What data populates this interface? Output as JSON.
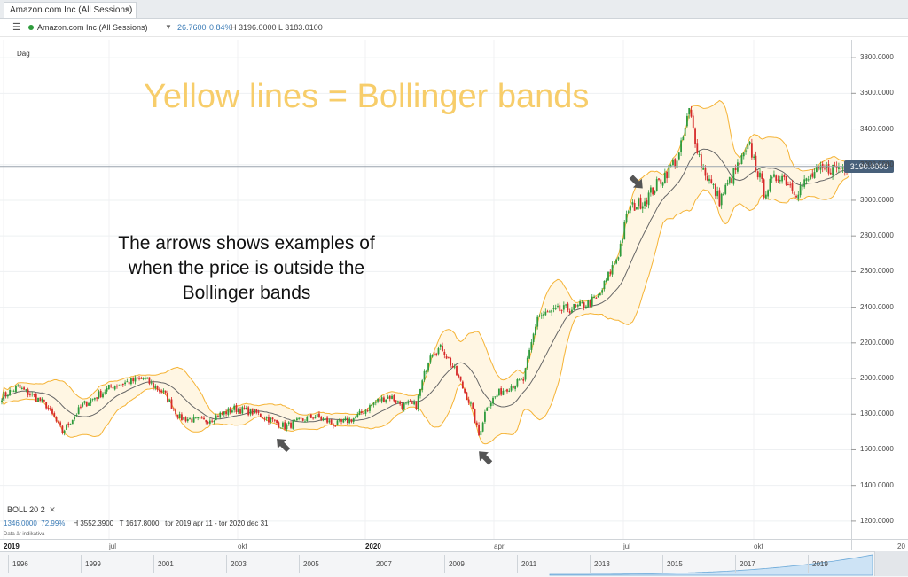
{
  "tab": {
    "title": "Amazon.com Inc (All Sessions)",
    "close": "×"
  },
  "toolbar": {
    "menu_icon": "hamburger-menu-icon",
    "instrument": "Amazon.com Inc (All Sessions)",
    "change": "26.7600",
    "change_pct": "0.84%",
    "high_low": "H 3196.0000  L 3183.0100"
  },
  "period": "Dag",
  "annotation": {
    "title": "Yellow lines = Bollinger bands",
    "body": "The arrows shows examples of when the price is outside the Bollinger bands"
  },
  "indicator": {
    "label": "BOLL  20  2",
    "close": "✕",
    "stats_a": "1346.0000",
    "stats_b": "72.99%",
    "stats_c": "H 3552.3900",
    "stats_d": "T 1617.8000",
    "stats_e": "tor 2019 apr 11 - tor 2020 dec 31",
    "note": "Data är indikativa"
  },
  "last_price": "3190.0000",
  "navigator": [
    "1996",
    "1999",
    "2001",
    "2003",
    "2005",
    "2007",
    "2009",
    "2011",
    "2013",
    "2015",
    "2017",
    "2019"
  ],
  "colors": {
    "up": "#2e9b3c",
    "down": "#d62a2a",
    "band": "#f5b335",
    "band_fill": "#fff6e3",
    "middle": "#666666",
    "annotation": "#f7cd6a",
    "arrow": "#555555"
  },
  "chart_data": {
    "type": "candlestick",
    "title": "",
    "ylim": [
      1100,
      3900
    ],
    "y_ticks": [
      "1200.0000",
      "1400.0000",
      "1600.0000",
      "1800.0000",
      "2000.0000",
      "2200.0000",
      "2400.0000",
      "2600.0000",
      "2800.0000",
      "3000.0000",
      "3200.0000",
      "3400.0000",
      "3600.0000",
      "3800.0000"
    ],
    "x_ticks": [
      "2019",
      "jul",
      "okt",
      "2020",
      "apr",
      "jul",
      "okt",
      "20"
    ],
    "x_tick_bold": [
      "2019",
      "2020"
    ],
    "bollinger_period": 20,
    "bollinger_stddev": 2,
    "close_points": [
      [
        0,
        1900
      ],
      [
        8,
        1950
      ],
      [
        16,
        1900
      ],
      [
        22,
        1850
      ],
      [
        30,
        1700
      ],
      [
        40,
        1850
      ],
      [
        55,
        1960
      ],
      [
        70,
        2000
      ],
      [
        80,
        1920
      ],
      [
        88,
        1780
      ],
      [
        100,
        1760
      ],
      [
        115,
        1830
      ],
      [
        125,
        1810
      ],
      [
        140,
        1730
      ],
      [
        155,
        1790
      ],
      [
        165,
        1740
      ],
      [
        175,
        1780
      ],
      [
        185,
        1870
      ],
      [
        192,
        1900
      ],
      [
        198,
        1850
      ],
      [
        205,
        1850
      ],
      [
        212,
        2150
      ],
      [
        218,
        2170
      ],
      [
        226,
        2000
      ],
      [
        232,
        1850
      ],
      [
        236,
        1680
      ],
      [
        240,
        1850
      ],
      [
        246,
        1920
      ],
      [
        250,
        1950
      ],
      [
        258,
        1990
      ],
      [
        265,
        2350
      ],
      [
        275,
        2380
      ],
      [
        285,
        2400
      ],
      [
        295,
        2450
      ],
      [
        305,
        2700
      ],
      [
        310,
        2950
      ],
      [
        318,
        3000
      ],
      [
        325,
        3100
      ],
      [
        335,
        3250
      ],
      [
        340,
        3500
      ],
      [
        346,
        3200
      ],
      [
        355,
        3000
      ],
      [
        362,
        3150
      ],
      [
        370,
        3300
      ],
      [
        377,
        3050
      ],
      [
        385,
        3150
      ],
      [
        393,
        3050
      ],
      [
        402,
        3150
      ],
      [
        410,
        3180
      ],
      [
        418,
        3190
      ]
    ],
    "last_close": 3190,
    "arrows": [
      {
        "dir": "down",
        "candle": 317
      },
      {
        "dir": "up",
        "candle": 136
      },
      {
        "dir": "up",
        "candle": 236
      }
    ]
  }
}
